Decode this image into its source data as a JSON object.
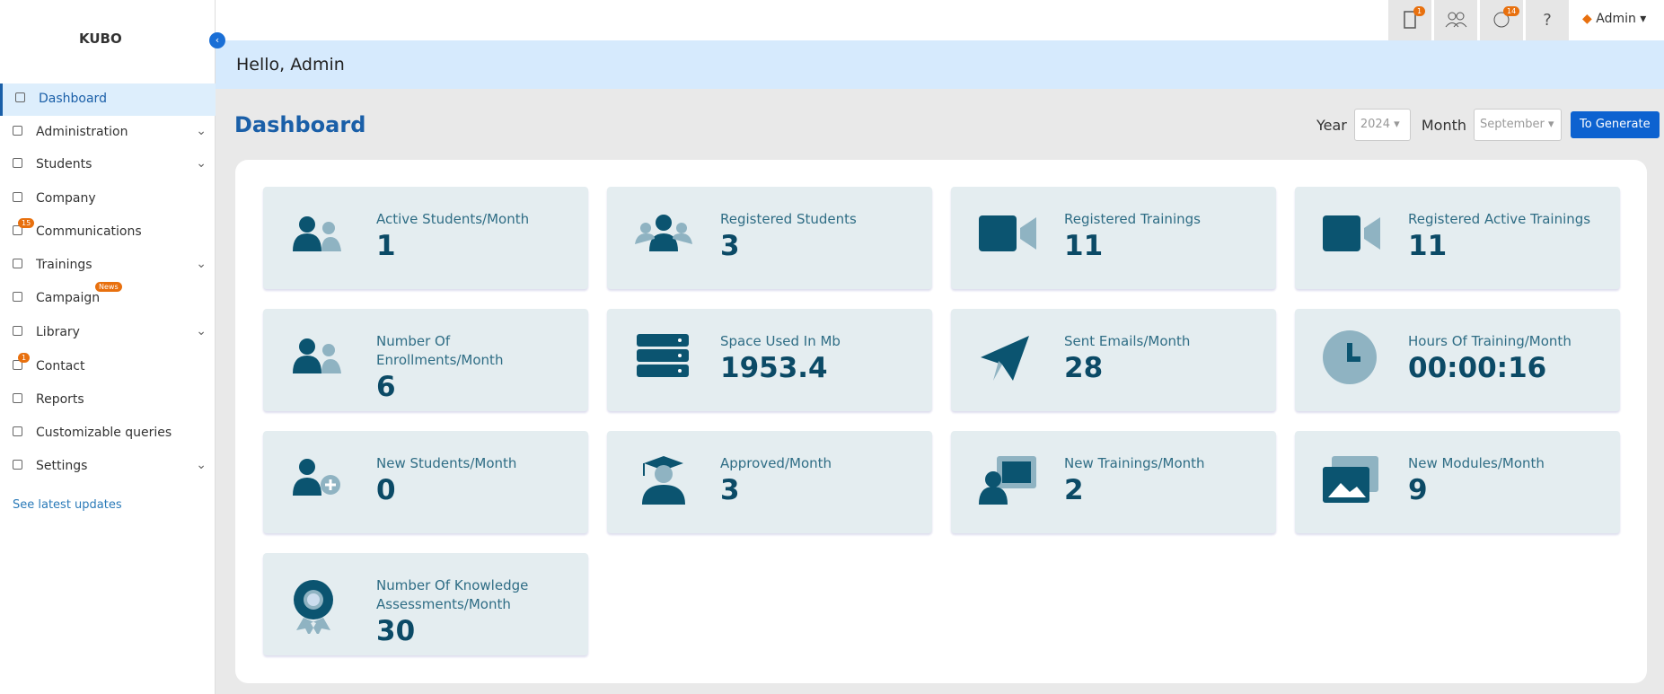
{
  "logo": "KUBO",
  "topbar": {
    "badges": [
      "1",
      "14"
    ],
    "user": "Admin"
  },
  "sidebar": {
    "items": [
      {
        "label": "Dashboard"
      },
      {
        "label": "Administration"
      },
      {
        "label": "Students"
      },
      {
        "label": "Company"
      },
      {
        "label": "Communications",
        "badge": "15"
      },
      {
        "label": "Trainings"
      },
      {
        "label": "Campaign",
        "badge": "News"
      },
      {
        "label": "Library"
      },
      {
        "label": "Contact",
        "badge": "1"
      },
      {
        "label": "Reports"
      },
      {
        "label": "Customizable queries"
      },
      {
        "label": "Settings"
      }
    ],
    "footer_link": "See latest updates"
  },
  "greeting": "Hello, Admin",
  "page_title": "Dashboard",
  "filters": {
    "year_label": "Year",
    "year": "2024",
    "month_label": "Month",
    "month": "September",
    "button": "To Generate"
  },
  "cards": [
    {
      "label": "Active Students/Month",
      "value": "1"
    },
    {
      "label": "Registered Students",
      "value": "3"
    },
    {
      "label": "Registered Trainings",
      "value": "11"
    },
    {
      "label": "Registered Active Trainings",
      "value": "11"
    },
    {
      "label": "Number Of Enrollments/Month",
      "value": "6"
    },
    {
      "label": "Space Used In Mb",
      "value": "1953.4"
    },
    {
      "label": "Sent Emails/Month",
      "value": "28"
    },
    {
      "label": "Hours Of Training/Month",
      "value": "00:00:16"
    },
    {
      "label": "New Students/Month",
      "value": "0"
    },
    {
      "label": "Approved/Month",
      "value": "3"
    },
    {
      "label": "New Trainings/Month",
      "value": "2"
    },
    {
      "label": "New Modules/Month",
      "value": "9"
    },
    {
      "label": "Number Of Knowledge Assessments/Month",
      "value": "30"
    }
  ]
}
